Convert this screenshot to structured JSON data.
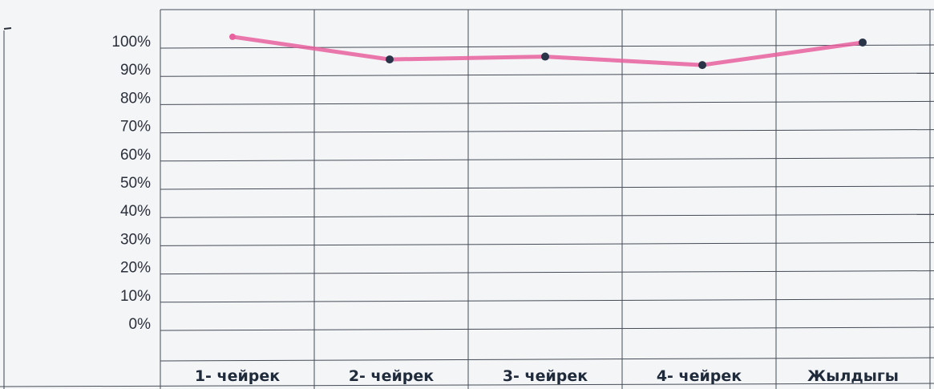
{
  "chart_data": {
    "type": "line",
    "title": "",
    "xlabel": "",
    "ylabel": "",
    "categories": [
      "1- чейрек",
      "2- чейрек",
      "3- чейрек",
      "4- чейрек",
      "Жылдыгы"
    ],
    "yticks": [
      "0%",
      "10%",
      "20%",
      "30%",
      "40%",
      "50%",
      "60%",
      "70%",
      "80%",
      "90%",
      "100%"
    ],
    "ylim": [
      0,
      100
    ],
    "grid": true,
    "series": [
      {
        "values": [
          104,
          96,
          97,
          94,
          102
        ],
        "color": "#e8609e"
      }
    ],
    "marker_color": "#2a3448"
  }
}
